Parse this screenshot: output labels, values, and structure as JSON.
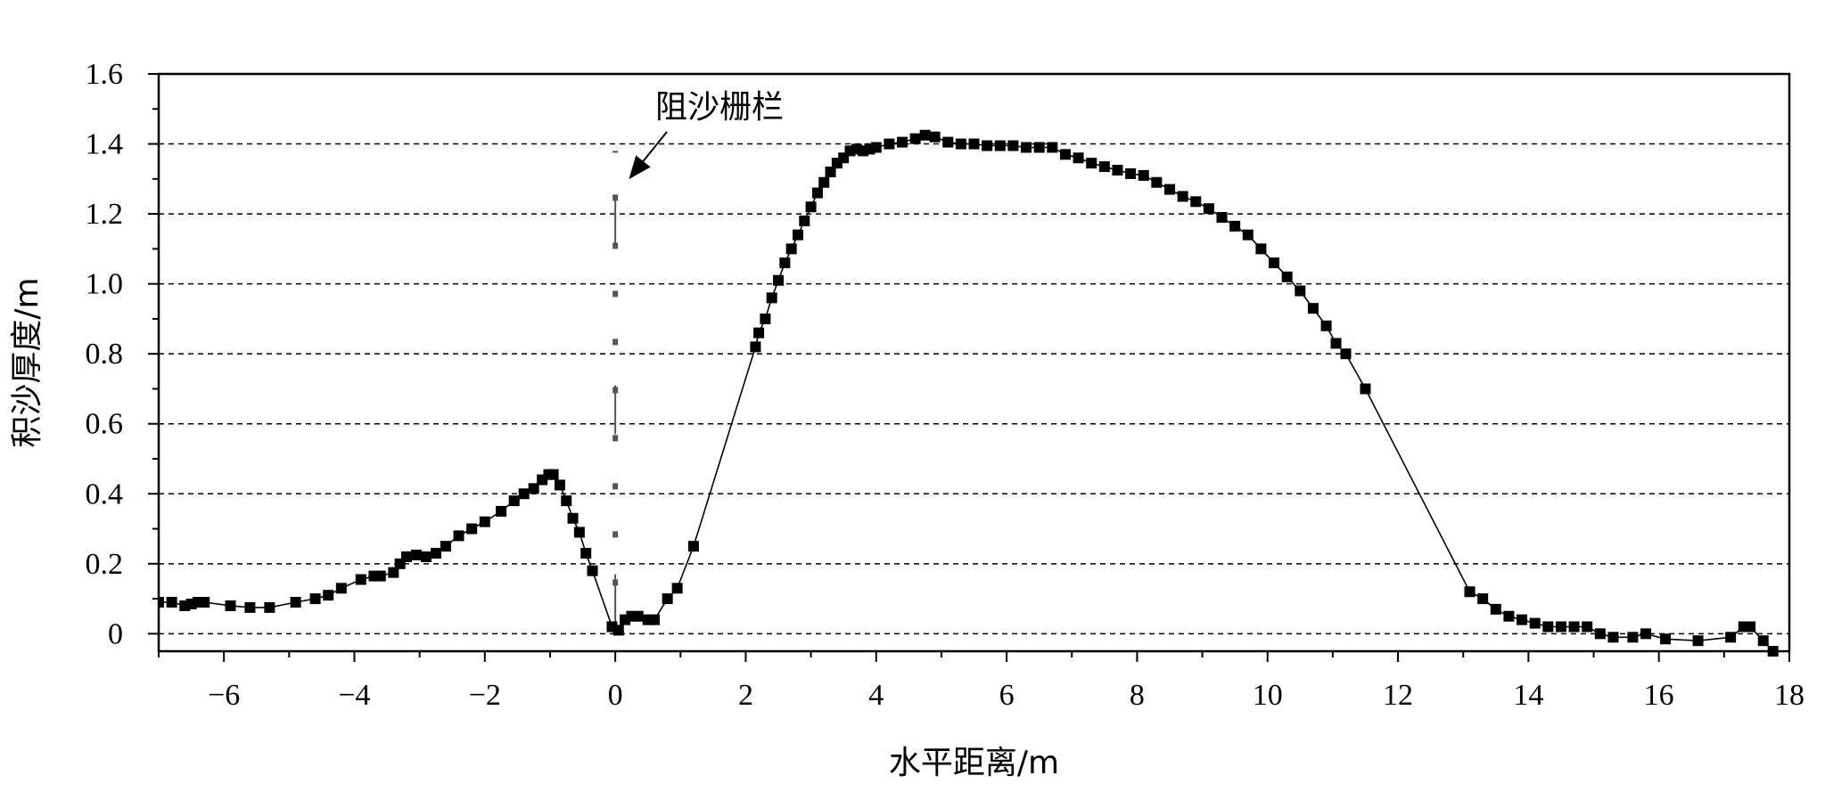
{
  "chart_data": {
    "type": "line",
    "title": "",
    "xlabel": "水平距离/m",
    "ylabel": "积沙厚度/m",
    "xlim": [
      -7,
      18
    ],
    "ylim": [
      -0.05,
      1.6
    ],
    "xticks": [
      -6,
      -4,
      -2,
      0,
      2,
      4,
      6,
      8,
      10,
      12,
      14,
      16,
      18
    ],
    "xtick_labels": [
      "−6",
      "−4",
      "−2",
      "0",
      "2",
      "4",
      "6",
      "8",
      "10",
      "12",
      "14",
      "16",
      "18"
    ],
    "yticks": [
      0,
      0.2,
      0.4,
      0.6,
      0.8,
      1.0,
      1.2,
      1.4,
      1.6
    ],
    "ytick_labels": [
      "0",
      "0.2",
      "0.4",
      "0.6",
      "0.8",
      "1.0",
      "1.2",
      "1.4",
      "1.6"
    ],
    "grid": {
      "horizontal": true,
      "style": "dashed",
      "values": [
        0,
        0.2,
        0.4,
        0.6,
        0.8,
        1.0,
        1.2,
        1.4
      ]
    },
    "legend": "none",
    "annotations": [
      {
        "text": "阻沙栅栏",
        "points_to": {
          "x": 0.3,
          "y": 1.32
        }
      }
    ],
    "fence": {
      "x": 0,
      "y_range": [
        0,
        1.38
      ]
    },
    "series": [
      {
        "marker": "square",
        "color": "#000000",
        "x": [
          -7.0,
          -6.8,
          -6.6,
          -6.5,
          -6.4,
          -6.3,
          -5.9,
          -5.6,
          -5.3,
          -4.9,
          -4.6,
          -4.4,
          -4.2,
          -3.9,
          -3.7,
          -3.6,
          -3.4,
          -3.3,
          -3.2,
          -3.05,
          -2.9,
          -2.75,
          -2.6,
          -2.4,
          -2.2,
          -2.0,
          -1.75,
          -1.55,
          -1.4,
          -1.25,
          -1.12,
          -1.02,
          -0.95,
          -0.85,
          -0.75,
          -0.65,
          -0.55,
          -0.45,
          -0.35,
          -0.05,
          0.05,
          0.15,
          0.25,
          0.35,
          0.5,
          0.6,
          0.8,
          0.95,
          1.2,
          2.15,
          2.2,
          2.3,
          2.4,
          2.5,
          2.6,
          2.7,
          2.8,
          2.9,
          3.0,
          3.1,
          3.2,
          3.3,
          3.4,
          3.5,
          3.6,
          3.7,
          3.8,
          3.9,
          4.0,
          4.2,
          4.4,
          4.6,
          4.75,
          4.9,
          5.1,
          5.3,
          5.5,
          5.7,
          5.9,
          6.1,
          6.3,
          6.5,
          6.7,
          6.9,
          7.1,
          7.3,
          7.5,
          7.7,
          7.9,
          8.1,
          8.3,
          8.5,
          8.7,
          8.9,
          9.1,
          9.3,
          9.5,
          9.7,
          9.9,
          10.1,
          10.3,
          10.5,
          10.7,
          10.9,
          11.05,
          11.2,
          11.5,
          13.1,
          13.3,
          13.5,
          13.7,
          13.9,
          14.1,
          14.3,
          14.5,
          14.7,
          14.9,
          15.1,
          15.3,
          15.6,
          15.8,
          16.1,
          16.6,
          17.1,
          17.3,
          17.4,
          17.6,
          17.75
        ],
        "y": [
          0.09,
          0.09,
          0.08,
          0.085,
          0.09,
          0.09,
          0.08,
          0.075,
          0.075,
          0.09,
          0.1,
          0.11,
          0.13,
          0.155,
          0.165,
          0.165,
          0.175,
          0.2,
          0.22,
          0.225,
          0.22,
          0.23,
          0.25,
          0.28,
          0.3,
          0.32,
          0.35,
          0.38,
          0.4,
          0.415,
          0.44,
          0.455,
          0.455,
          0.425,
          0.38,
          0.33,
          0.29,
          0.23,
          0.18,
          0.02,
          0.01,
          0.04,
          0.05,
          0.05,
          0.04,
          0.04,
          0.1,
          0.13,
          0.25,
          0.82,
          0.86,
          0.9,
          0.96,
          1.01,
          1.06,
          1.1,
          1.14,
          1.18,
          1.22,
          1.26,
          1.29,
          1.32,
          1.345,
          1.36,
          1.38,
          1.385,
          1.38,
          1.385,
          1.39,
          1.4,
          1.405,
          1.415,
          1.425,
          1.42,
          1.405,
          1.4,
          1.4,
          1.395,
          1.395,
          1.395,
          1.39,
          1.39,
          1.39,
          1.37,
          1.36,
          1.345,
          1.335,
          1.325,
          1.315,
          1.31,
          1.29,
          1.27,
          1.25,
          1.235,
          1.215,
          1.19,
          1.165,
          1.14,
          1.1,
          1.06,
          1.02,
          0.98,
          0.93,
          0.88,
          0.83,
          0.8,
          0.7,
          0.12,
          0.1,
          0.07,
          0.05,
          0.04,
          0.03,
          0.02,
          0.02,
          0.02,
          0.02,
          0.0,
          -0.01,
          -0.01,
          0.0,
          -0.015,
          -0.02,
          -0.01,
          0.02,
          0.02,
          -0.02,
          -0.05
        ]
      }
    ]
  }
}
